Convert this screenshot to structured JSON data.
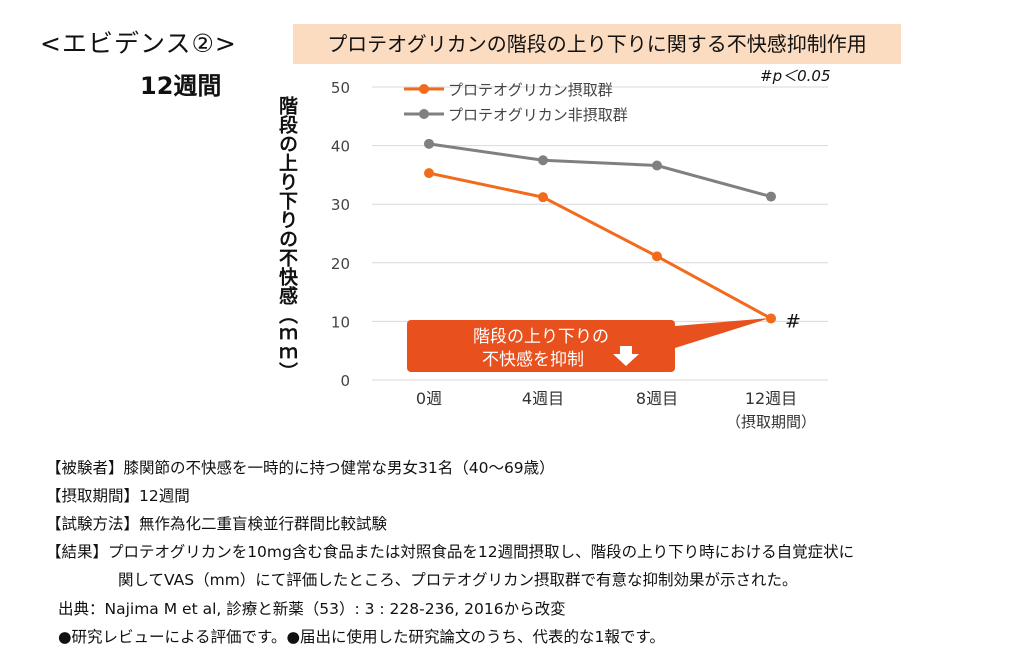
{
  "heading": "<エビデンス②>",
  "period_label": "12週間",
  "chart_data": {
    "type": "line",
    "title": "プロテオグリカンの階段の上り下りに関する不快感抑制作用",
    "ylabel": "階段の上り下りの不快感（ｍｍ）",
    "xlabel": "",
    "categories": [
      "0週",
      "4週目",
      "8週目",
      "12週目"
    ],
    "category_sublabels": [
      "",
      "",
      "",
      "（摂取期間）"
    ],
    "ylim": [
      0,
      50
    ],
    "yticks": [
      0,
      10,
      20,
      30,
      40,
      50
    ],
    "grid": true,
    "series": [
      {
        "name": "プロテオグリカン摂取群",
        "values": [
          35.3,
          31.2,
          21.1,
          10.5
        ],
        "color": "#f26b1d"
      },
      {
        "name": "プロテオグリカン非摂取群",
        "values": [
          40.3,
          37.5,
          36.6,
          31.3
        ],
        "color": "#808080"
      }
    ],
    "significance_note": "#p＜0.05",
    "significance_mark": "#",
    "callout_line1": "階段の上り下りの",
    "callout_line2": "不快感を抑制",
    "callout_color": "#e8501e"
  },
  "notes": {
    "subjects": "【被験者】膝関節の不快感を一時的に持つ健常な男女31名（40～69歳）",
    "intake_period": "【摂取期間】12週間",
    "method": "【試験方法】無作為化二重盲検並行群間比較試験",
    "result_line1": "【結果】プロテオグリカンを10mg含む食品または対照食品を12週間摂取し、階段の上り下り時における自覚症状に",
    "result_line2": "関してVAS（mm）にて評価したところ、プロテオグリカン摂取群で有意な抑制効果が示された。",
    "source": "出典：Najima M et al, 診療と新薬（53）: 3 : 228-236, 2016から改変",
    "disclaimer": "●研究レビューによる評価です。●届出に使用した研究論文のうち、代表的な1報です。"
  }
}
